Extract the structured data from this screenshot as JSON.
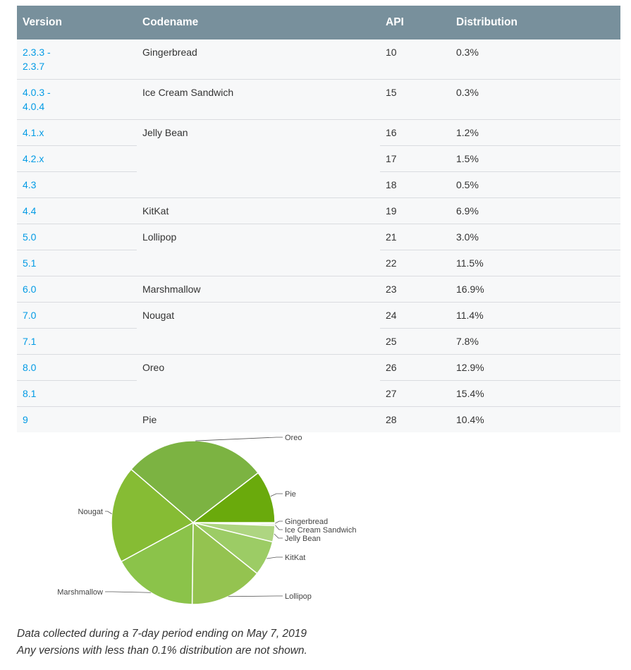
{
  "table": {
    "headers": {
      "version": "Version",
      "codename": "Codename",
      "api": "API",
      "distribution": "Distribution"
    },
    "rows": [
      {
        "version": "2.3.3 - 2.3.7",
        "codename": "Gingerbread",
        "api": "10",
        "distribution": "0.3%"
      },
      {
        "version": "4.0.3 - 4.0.4",
        "codename": "Ice Cream Sandwich",
        "api": "15",
        "distribution": "0.3%"
      },
      {
        "version": "4.1.x",
        "codename": "Jelly Bean",
        "api": "16",
        "distribution": "1.2%"
      },
      {
        "version": "4.2.x",
        "codename": "",
        "api": "17",
        "distribution": "1.5%"
      },
      {
        "version": "4.3",
        "codename": "",
        "api": "18",
        "distribution": "0.5%"
      },
      {
        "version": "4.4",
        "codename": "KitKat",
        "api": "19",
        "distribution": "6.9%"
      },
      {
        "version": "5.0",
        "codename": "Lollipop",
        "api": "21",
        "distribution": "3.0%"
      },
      {
        "version": "5.1",
        "codename": "",
        "api": "22",
        "distribution": "11.5%"
      },
      {
        "version": "6.0",
        "codename": "Marshmallow",
        "api": "23",
        "distribution": "16.9%"
      },
      {
        "version": "7.0",
        "codename": "Nougat",
        "api": "24",
        "distribution": "11.4%"
      },
      {
        "version": "7.1",
        "codename": "",
        "api": "25",
        "distribution": "7.8%"
      },
      {
        "version": "8.0",
        "codename": "Oreo",
        "api": "26",
        "distribution": "12.9%"
      },
      {
        "version": "8.1",
        "codename": "",
        "api": "27",
        "distribution": "15.4%"
      },
      {
        "version": "9",
        "codename": "Pie",
        "api": "28",
        "distribution": "10.4%"
      }
    ]
  },
  "chart_data": {
    "type": "pie",
    "title": "",
    "slices": [
      {
        "label": "Gingerbread",
        "value": 0.3,
        "color": "#dcedc8"
      },
      {
        "label": "Ice Cream Sandwich",
        "value": 0.3,
        "color": "#c5e1a5"
      },
      {
        "label": "Jelly Bean",
        "value": 3.2,
        "color": "#aed581"
      },
      {
        "label": "KitKat",
        "value": 6.9,
        "color": "#9ccc65"
      },
      {
        "label": "Lollipop",
        "value": 14.5,
        "color": "#94c350"
      },
      {
        "label": "Marshmallow",
        "value": 16.9,
        "color": "#8bc34a"
      },
      {
        "label": "Nougat",
        "value": 19.2,
        "color": "#86bc34"
      },
      {
        "label": "Oreo",
        "value": 28.3,
        "color": "#7cb342"
      },
      {
        "label": "Pie",
        "value": 10.4,
        "color": "#6aaa0c"
      }
    ]
  },
  "footnote": {
    "line1": "Data collected during a 7-day period ending on May 7, 2019",
    "line2": "Any versions with less than 0.1% distribution are not shown."
  },
  "colors": {
    "header_bg": "#78909c",
    "link": "#039be5",
    "row_bg": "#f7f8f9"
  }
}
